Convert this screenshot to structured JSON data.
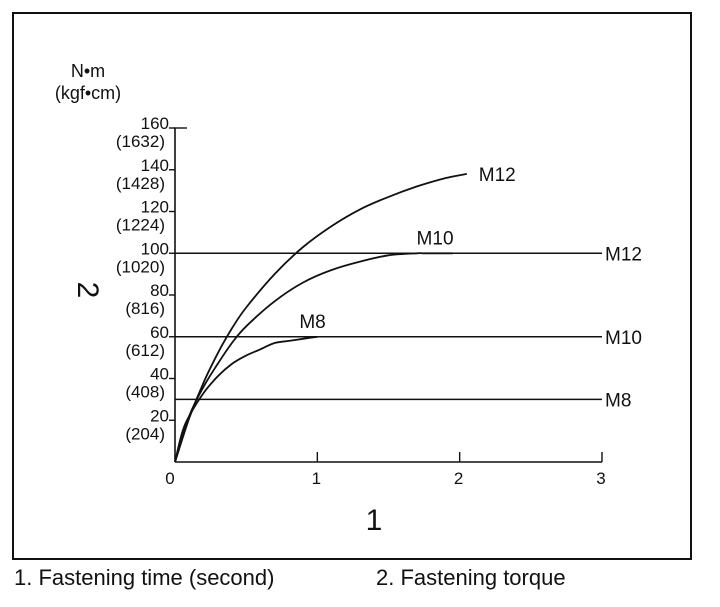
{
  "chart_data": {
    "type": "line",
    "title": "",
    "xlabel": "1",
    "ylabel": "2",
    "y_unit_primary": "N•m",
    "y_unit_secondary": "(kgf•cm)",
    "xlim": [
      0,
      3
    ],
    "ylim": [
      0,
      160
    ],
    "x_ticks": [
      {
        "value": 0,
        "label": "0"
      },
      {
        "value": 1,
        "label": "1"
      },
      {
        "value": 2,
        "label": "2"
      },
      {
        "value": 3,
        "label": "3"
      }
    ],
    "y_ticks": [
      {
        "value": 20,
        "label": "20",
        "sub": "(204)"
      },
      {
        "value": 40,
        "label": "40",
        "sub": "(408)"
      },
      {
        "value": 60,
        "label": "60",
        "sub": "(612)"
      },
      {
        "value": 80,
        "label": "80",
        "sub": "(816)"
      },
      {
        "value": 100,
        "label": "100",
        "sub": "(1020)"
      },
      {
        "value": 120,
        "label": "120",
        "sub": "(1224)"
      },
      {
        "value": 140,
        "label": "140",
        "sub": "(1428)"
      },
      {
        "value": 160,
        "label": "160",
        "sub": "(1632)"
      }
    ],
    "series": [
      {
        "name": "M12",
        "kind": "curve",
        "x": [
          0,
          0.1,
          0.2,
          0.3,
          0.4,
          0.5,
          0.7,
          0.9,
          1.1,
          1.3,
          1.5,
          1.7,
          1.9,
          2.05
        ],
        "y": [
          0,
          21,
          38,
          52,
          64,
          74,
          90,
          103,
          113,
          121,
          127,
          132,
          136,
          138
        ]
      },
      {
        "name": "M10",
        "kind": "curve",
        "x": [
          0,
          0.1,
          0.2,
          0.3,
          0.4,
          0.5,
          0.7,
          0.9,
          1.1,
          1.3,
          1.5,
          1.7,
          1.75,
          1.95
        ],
        "y": [
          0,
          22,
          36,
          47,
          57,
          65,
          77,
          86,
          92,
          96,
          99,
          100,
          100,
          100
        ]
      },
      {
        "name": "M8",
        "kind": "curve",
        "x": [
          0,
          0.05,
          0.1,
          0.2,
          0.3,
          0.4,
          0.5,
          0.6,
          0.7,
          0.8,
          0.9,
          1.0
        ],
        "y": [
          0,
          14,
          22,
          33,
          41,
          47,
          51,
          54,
          57,
          58,
          59,
          60
        ]
      },
      {
        "name": "M12",
        "kind": "horizontal",
        "value": 100
      },
      {
        "name": "M10",
        "kind": "horizontal",
        "value": 60
      },
      {
        "name": "M8",
        "kind": "horizontal",
        "value": 30
      }
    ]
  },
  "captions": {
    "item1": "1. Fastening time (second)",
    "item2": "2. Fastening torque"
  }
}
